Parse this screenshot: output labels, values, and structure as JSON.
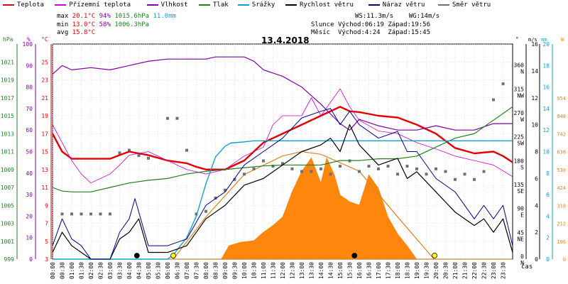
{
  "legend": [
    {
      "label": "Teplota",
      "color": "#e00000"
    },
    {
      "label": "Přízemní teplota",
      "color": "#d000d0"
    },
    {
      "label": "Vlhkost",
      "color": "#8000a0"
    },
    {
      "label": "Tlak",
      "color": "#208020"
    },
    {
      "label": "Srážky",
      "color": "#10a0d0"
    },
    {
      "label": "Rychlost větru",
      "color": "#000000"
    },
    {
      "label": "Náraz větru",
      "color": "#000080"
    },
    {
      "label": "Směr větru",
      "color": "#707070"
    }
  ],
  "stats": {
    "max": {
      "label": "max",
      "temp": "20.1°C",
      "hum": "94%",
      "press": "1015.6hPa",
      "rain": "11.0mm"
    },
    "min": {
      "label": "min",
      "temp": "13.0°C",
      "hum": "58%",
      "press": "1006.3hPa"
    },
    "avg": {
      "label": "avg",
      "temp": "15.8°C"
    }
  },
  "wind_info": {
    "ws": "WS:11.3m/s",
    "wg": "WG:14m/s"
  },
  "sun": {
    "label": "Slunce",
    "rise": "Východ:06:19",
    "set": "Západ:19:56"
  },
  "moon": {
    "label": "Měsíc",
    "rise": "Východ:4:24",
    "set": "Západ:15:45"
  },
  "date_title": "13.4.2018",
  "axis_units": {
    "hpa": "hPa",
    "pct": "%",
    "degc": "°C",
    "deg": "°",
    "ms": "m/s",
    "mm": "mm",
    "w": "W",
    "cas": "čas"
  },
  "colors": {
    "temp": "#e00000",
    "ground": "#d000d0",
    "hum": "#8000a0",
    "press": "#208020",
    "rain": "#10a0d0",
    "wind": "#000000",
    "gust": "#000080",
    "dir": "#707070",
    "solar": "#ff8000",
    "sunpath": "#e08020"
  },
  "chart_data": {
    "type": "line",
    "x_labels": [
      "00:00",
      "00:30",
      "01:00",
      "01:30",
      "02:00",
      "02:30",
      "03:00",
      "03:30",
      "04:00",
      "04:30",
      "05:00",
      "05:30",
      "06:00",
      "06:30",
      "07:00",
      "07:30",
      "08:00",
      "08:30",
      "09:00",
      "09:30",
      "10:00",
      "10:30",
      "11:00",
      "11:30",
      "12:00",
      "12:30",
      "13:00",
      "13:30",
      "14:00",
      "14:30",
      "15:00",
      "15:30",
      "16:00",
      "16:30",
      "17:00",
      "17:30",
      "18:00",
      "18:30",
      "19:00",
      "19:30",
      "20:00",
      "20:30",
      "21:00",
      "21:30",
      "22:00",
      "22:30",
      "23:00",
      "23:30"
    ],
    "axes": {
      "hpa": {
        "min": 999,
        "max": 1023,
        "ticks": [
          "999",
          "1001",
          "1003",
          "1005",
          "1007",
          "1009",
          "1011",
          "1013",
          "1015",
          "1017",
          "1019",
          "1021"
        ]
      },
      "pct": {
        "min": 0,
        "max": 100,
        "ticks": [
          "0",
          "10",
          "20",
          "30",
          "40",
          "50",
          "60",
          "70",
          "80",
          "90",
          "100"
        ]
      },
      "degc": {
        "min": 3,
        "max": 27,
        "ticks": [
          "3",
          "5",
          "7",
          "9",
          "11",
          "13",
          "15",
          "17",
          "19",
          "21",
          "23",
          "25"
        ]
      },
      "dir": {
        "min": 0,
        "max": 405,
        "ticks": [
          "0 N",
          "45 NE",
          "90 E",
          "135 SE",
          "180 S",
          "225 SW",
          "270 W",
          "315 NW",
          "360 N"
        ]
      },
      "ms": {
        "min": 0,
        "max": 16,
        "ticks": [
          "0",
          "2",
          "4",
          "6",
          "8",
          "10",
          "12",
          "14",
          "16"
        ]
      },
      "mm": {
        "min": 0,
        "max": 20,
        "ticks": [
          "0",
          "2",
          "4",
          "6",
          "8",
          "10",
          "12",
          "14",
          "16",
          "18",
          "20"
        ]
      },
      "w": {
        "min": 0,
        "max": 1272,
        "ticks": [
          "0",
          "106",
          "212",
          "318",
          "424",
          "530",
          "636",
          "742",
          "848",
          "954"
        ]
      }
    },
    "series": [
      {
        "name": "Teplota",
        "axis": "degc",
        "x": [
          0,
          0.5,
          1,
          2,
          3,
          3.5,
          4,
          5,
          6,
          7,
          7.5,
          8,
          9,
          10,
          11,
          12,
          13,
          14,
          15,
          15.5,
          16,
          17,
          18,
          19,
          20,
          21,
          22,
          23,
          23.5,
          24
        ],
        "values": [
          17,
          15,
          14.2,
          14.2,
          14.2,
          14.6,
          15,
          14.6,
          14,
          13.7,
          13.3,
          13,
          13,
          14,
          16,
          17,
          18,
          19,
          20,
          19.5,
          19.4,
          19,
          18.8,
          18,
          17,
          15.4,
          14.8,
          15,
          14.5,
          13.8
        ]
      },
      {
        "name": "Přízemní teplota",
        "axis": "degc",
        "x": [
          0,
          0.5,
          1,
          1.5,
          2,
          3,
          3.5,
          4,
          5,
          6,
          7,
          8,
          9,
          10,
          11,
          11.5,
          12,
          13,
          13.5,
          14,
          15,
          15.5,
          16,
          17,
          18,
          19,
          20,
          21,
          22,
          23,
          24
        ],
        "values": [
          18,
          16,
          14,
          12.5,
          11.5,
          12.5,
          13.5,
          14.6,
          15,
          14,
          13,
          12.5,
          13,
          14.5,
          15.5,
          18,
          19,
          19,
          21,
          19,
          22,
          20,
          18.5,
          17.3,
          17,
          16,
          15.3,
          14.5,
          14,
          13.5,
          12.2
        ]
      },
      {
        "name": "Vlhkost",
        "axis": "pct",
        "x": [
          0,
          0.5,
          1,
          2,
          3,
          4,
          5,
          6,
          7,
          8,
          8.5,
          9,
          10,
          10.5,
          11,
          12,
          13,
          14,
          15,
          15.5,
          16,
          17,
          18,
          19,
          20,
          21,
          22,
          23,
          24
        ],
        "values": [
          86,
          90,
          88,
          89,
          88,
          90,
          92,
          93,
          93,
          93,
          94,
          94,
          94,
          92,
          88,
          85,
          80,
          72,
          63,
          60,
          65,
          62,
          60,
          60,
          62,
          60,
          60,
          63,
          63
        ]
      },
      {
        "name": "Tlak",
        "axis": "hpa",
        "x": [
          0,
          0.5,
          1,
          2,
          3,
          4,
          5,
          6,
          7,
          8,
          9,
          10,
          11,
          12,
          13,
          14,
          15,
          16,
          17,
          18,
          19,
          20,
          21,
          22,
          23,
          24
        ],
        "values": [
          1007,
          1006.6,
          1006.5,
          1006.5,
          1007,
          1007.5,
          1007.8,
          1008,
          1008.5,
          1008.8,
          1009,
          1009.2,
          1009.4,
          1009.5,
          1009.5,
          1009.5,
          1010,
          1010,
          1010.2,
          1010.2,
          1010.5,
          1011.5,
          1012.5,
          1013,
          1014.5,
          1016
        ]
      },
      {
        "name": "Srážky",
        "axis": "mm",
        "x": [
          0,
          6,
          6.3,
          7,
          7.5,
          8,
          8.5,
          9,
          9.3,
          10,
          10.5,
          24
        ],
        "values": [
          0,
          0,
          0.4,
          2,
          4,
          7,
          9.5,
          10.5,
          10.8,
          10.9,
          11,
          11
        ]
      },
      {
        "name": "Rychlost větru",
        "axis": "ms",
        "x": [
          0,
          0.5,
          1,
          1.5,
          2,
          3,
          3.5,
          4,
          4.5,
          5,
          6,
          7,
          8,
          9,
          10,
          11,
          12,
          13,
          14,
          14.5,
          15,
          15.5,
          16,
          17,
          18,
          18.5,
          19,
          20,
          21,
          22,
          22.5,
          23,
          23.5,
          24
        ],
        "values": [
          0.5,
          2,
          1,
          0.5,
          0,
          0,
          1.5,
          2,
          3,
          0.5,
          0.5,
          1,
          3,
          4,
          5.5,
          6,
          7,
          8,
          8.5,
          9,
          8,
          10,
          8.5,
          7,
          7.5,
          6,
          6.5,
          5,
          3.5,
          2.5,
          3,
          2,
          3,
          0.5
        ]
      },
      {
        "name": "Náraz větru",
        "axis": "ms",
        "x": [
          0,
          0.5,
          1,
          1.5,
          2,
          3,
          3.5,
          4,
          4.3,
          5,
          6,
          7,
          8,
          9,
          10,
          11,
          12,
          13,
          14,
          14.5,
          15,
          15.5,
          16,
          17,
          18,
          18.5,
          19,
          20,
          21,
          22,
          22.5,
          23,
          23.5,
          24
        ],
        "values": [
          1,
          3,
          1.5,
          1,
          0,
          0,
          2,
          3,
          4.5,
          1,
          1,
          1.5,
          4,
          5,
          7,
          8,
          9,
          10.5,
          11,
          11.2,
          10,
          11,
          10,
          9,
          9.5,
          8,
          8,
          6,
          5,
          3,
          4,
          3,
          4,
          1
        ]
      }
    ],
    "wind_direction": {
      "axis": "dir",
      "x": [
        0.5,
        1,
        1.5,
        2,
        2.5,
        3,
        3.5,
        4,
        4.5,
        5,
        6,
        6.5,
        7,
        7.5,
        8,
        8.5,
        9,
        9.5,
        10,
        10.5,
        11,
        11.5,
        12,
        12.5,
        13,
        13.5,
        14,
        14.5,
        15,
        15.5,
        16,
        16.5,
        17,
        17.5,
        18,
        18.5,
        19,
        19.5,
        20,
        20.5,
        21,
        21.5,
        22,
        22.5,
        23,
        23.5
      ],
      "values": [
        85,
        85,
        85,
        85,
        85,
        85,
        200,
        205,
        195,
        190,
        265,
        265,
        205,
        85,
        90,
        115,
        130,
        150,
        160,
        170,
        185,
        175,
        180,
        170,
        165,
        165,
        170,
        160,
        175,
        185,
        165,
        175,
        170,
        175,
        160,
        175,
        170,
        160,
        170,
        165,
        150,
        160,
        150,
        165,
        300,
        330
      ]
    },
    "solar": {
      "axis": "w",
      "x": [
        0,
        8.8,
        9.2,
        9.8,
        10.5,
        11,
        11.5,
        12,
        12.5,
        13,
        13.5,
        14,
        14.3,
        14.7,
        15,
        15.5,
        16,
        16.5,
        17,
        17.5,
        18,
        18.5,
        19,
        24
      ],
      "values": [
        0,
        0,
        80,
        100,
        110,
        160,
        200,
        250,
        400,
        520,
        600,
        450,
        600,
        500,
        380,
        340,
        320,
        500,
        420,
        250,
        150,
        80,
        0,
        0
      ]
    },
    "sun_path": {
      "axis": "w",
      "x": [
        6.3,
        8,
        10,
        12,
        13,
        14,
        16,
        18,
        19.9
      ],
      "values": [
        0,
        250,
        500,
        610,
        636,
        620,
        520,
        250,
        0
      ]
    },
    "markers": [
      {
        "name": "moonrise",
        "x": 4.4,
        "symbol": "●"
      },
      {
        "name": "sunrise",
        "x": 6.3,
        "symbol": "○"
      },
      {
        "name": "moonset",
        "x": 15.75,
        "symbol": "●"
      },
      {
        "name": "sunset",
        "x": 19.93,
        "symbol": "○"
      }
    ]
  }
}
